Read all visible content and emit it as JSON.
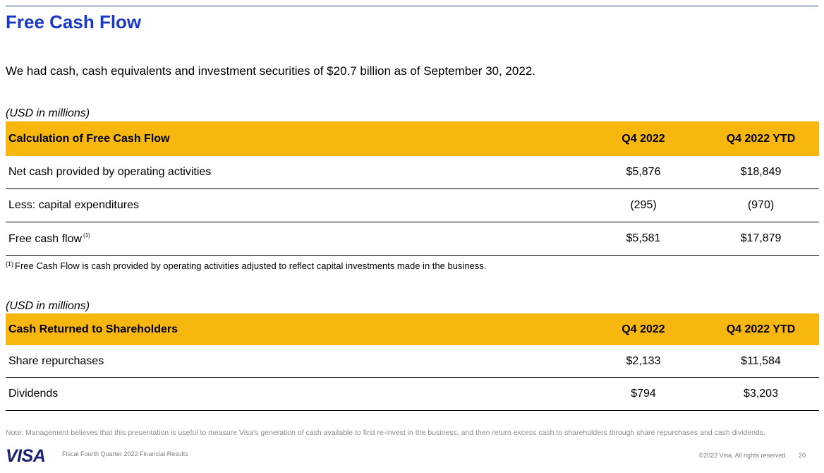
{
  "title": "Free Cash Flow",
  "lead": "We had cash, cash equivalents and investment securities of $20.7 billion as of September 30, 2022.",
  "fcf_table": {
    "units": "(USD in millions)",
    "headers": [
      "Calculation of Free Cash Flow",
      "Q4 2022",
      "Q4 2022 YTD"
    ],
    "rows": [
      {
        "label": "Net cash provided by operating activities",
        "q4": "$5,876",
        "ytd": "$18,849"
      },
      {
        "label": "Less: capital expenditures",
        "q4": "(295)",
        "ytd": "(970)"
      },
      {
        "label": "Free cash flow",
        "marker": "(1)",
        "q4": "$5,581",
        "ytd": "$17,879"
      }
    ],
    "footnote_marker": "(1)",
    "footnote": "Free Cash Flow is cash provided by operating activities adjusted to reflect capital investments made in the business."
  },
  "crs_table": {
    "units": "(USD in millions)",
    "headers": [
      "Cash Returned to Shareholders",
      "Q4 2022",
      "Q4 2022 YTD"
    ],
    "rows": [
      {
        "label": "Share repurchases",
        "q4": "$2,133",
        "ytd": "$11,584"
      },
      {
        "label": "Dividends",
        "q4": "$794",
        "ytd": "$3,203"
      }
    ]
  },
  "note": "Note: Management believes that this presentation is useful to measure Visa's generation of cash available to first re-invest in the business, and then return excess cash to shareholders through share repurchases and cash dividends.",
  "footer": {
    "logo": "VISA",
    "subtitle": "Fiscal Fourth Quarter 2022 Financial Results",
    "copyright": "©2022 Visa. All rights reserved.",
    "page": "20"
  },
  "colors": {
    "title": "#1a39c4",
    "header_fill": "#f7b70e",
    "logo": "#1a1f71"
  }
}
